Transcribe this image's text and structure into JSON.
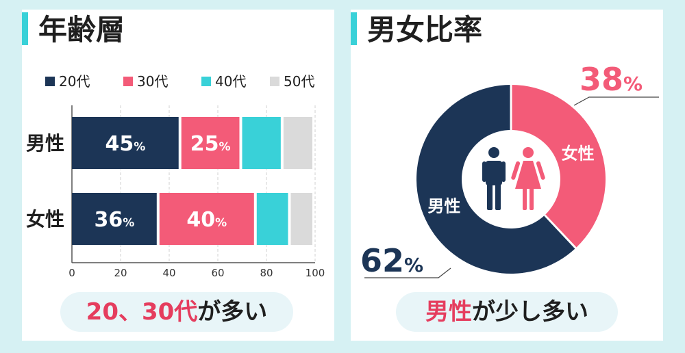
{
  "colors": {
    "age20": "#1c3556",
    "age30": "#f35b78",
    "age40": "#39d1d8",
    "age50": "#dadada",
    "male": "#1c3556",
    "female": "#f35b78",
    "accent": "#39d1d8",
    "highlight": "#e53d5e"
  },
  "left_panel": {
    "title": "年齢層",
    "summary": {
      "highlight": "20、30代",
      "rest": "が多い"
    }
  },
  "right_panel": {
    "title": "男女比率",
    "summary": {
      "highlight": "男性",
      "rest": "が少し多い"
    }
  },
  "chart_data": [
    {
      "type": "bar",
      "orientation": "horizontal",
      "stacked": true,
      "title": "年齢層",
      "categories": [
        "男性",
        "女性"
      ],
      "series": [
        {
          "name": "20代",
          "values": [
            45,
            36
          ],
          "labels": [
            "45",
            "36"
          ]
        },
        {
          "name": "30代",
          "values": [
            25,
            40
          ],
          "labels": [
            "25",
            "40"
          ]
        },
        {
          "name": "40代",
          "values": [
            17,
            14
          ],
          "labels": [
            "",
            ""
          ]
        },
        {
          "name": "50代",
          "values": [
            13,
            10
          ],
          "labels": [
            "",
            ""
          ]
        }
      ],
      "label_unit": "%",
      "xlim": [
        0,
        100
      ],
      "xticks": [
        "0",
        "20",
        "40",
        "60",
        "80",
        "100"
      ],
      "grid": true,
      "legend": "top"
    },
    {
      "type": "pie",
      "donut": true,
      "title": "男女比率",
      "slices": [
        {
          "name": "女性",
          "value": 38,
          "label": "38"
        },
        {
          "name": "男性",
          "value": 62,
          "label": "62"
        }
      ],
      "label_unit": "%"
    }
  ]
}
